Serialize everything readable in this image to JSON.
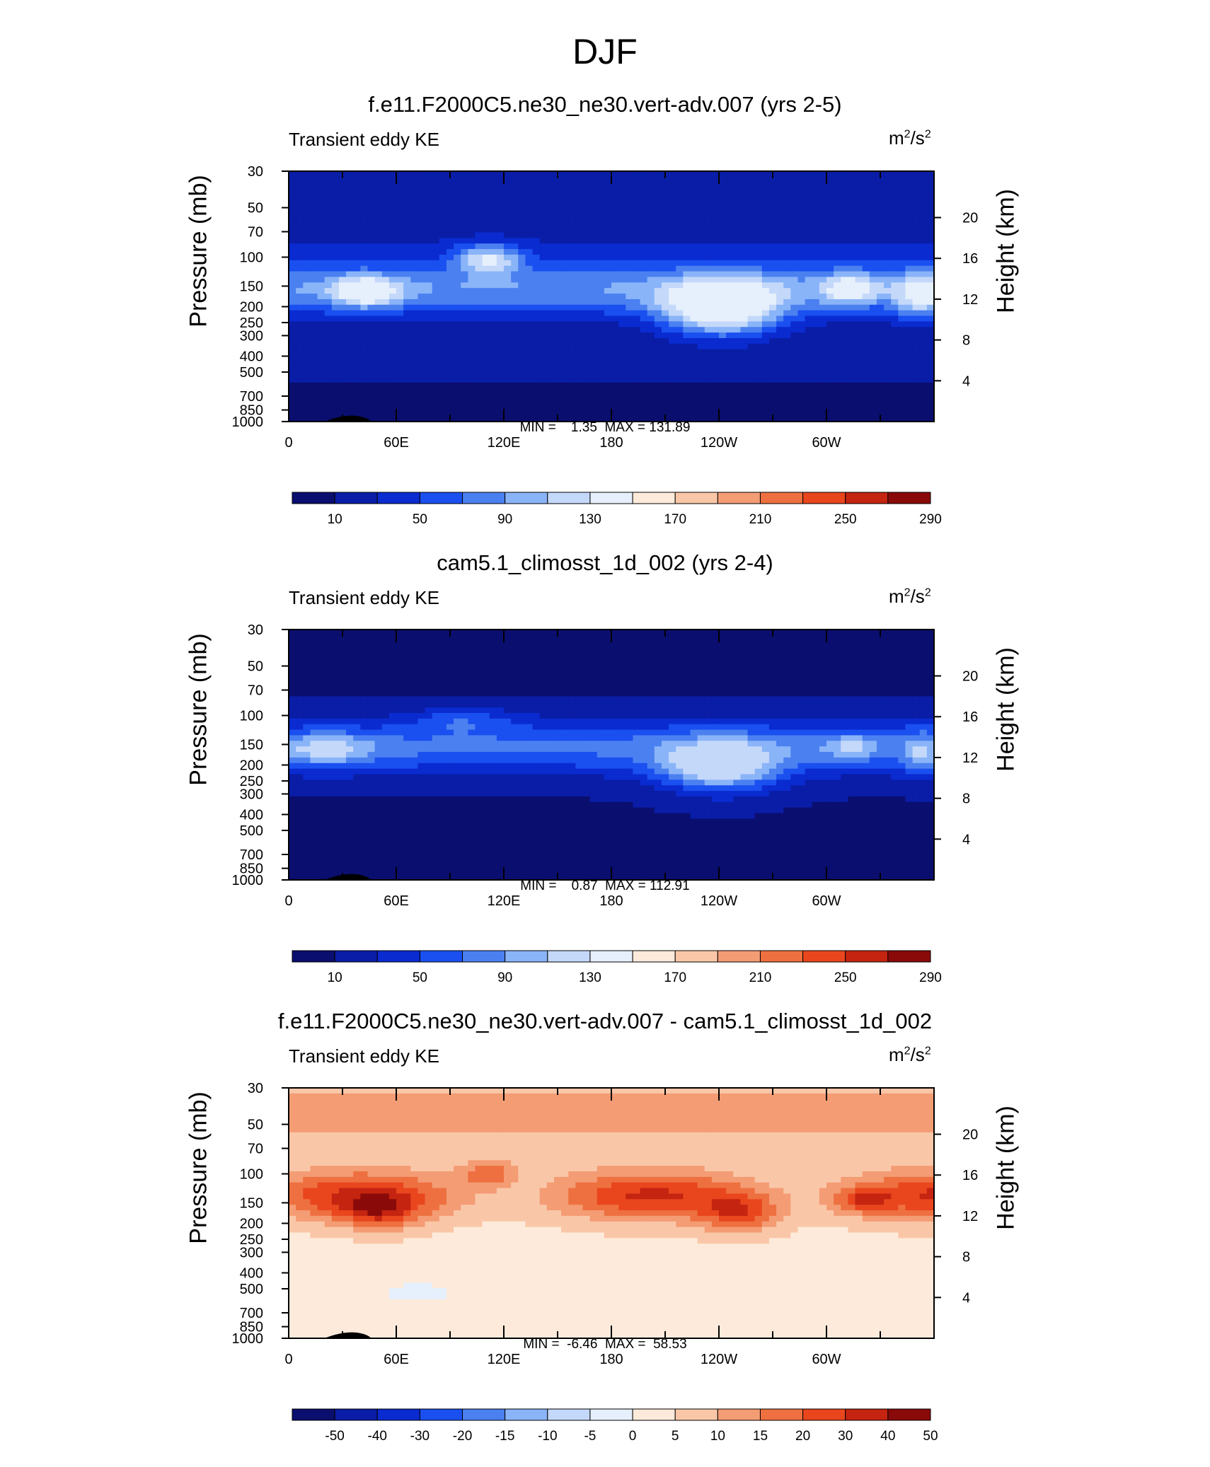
{
  "figure": {
    "title": "DJF"
  },
  "colors": {
    "scale": [
      "#0a0e6e",
      "#0a1da6",
      "#0a2bd0",
      "#1a4ff0",
      "#4a80f0",
      "#8ab4f8",
      "#c4d8fa",
      "#e6f0fc",
      "#fdeada",
      "#f9c7a8",
      "#f49c74",
      "#ee7040",
      "#e9461e",
      "#c42410",
      "#8a0a0a"
    ]
  },
  "panels": [
    {
      "title": "f.e11.F2000C5.ne30_ne30.vert-adv.007 (yrs 2-5)",
      "var_label": "Transient eddy KE",
      "units_base": "m",
      "units_sup1": "2",
      "units_mid": "/s",
      "units_sup2": "2",
      "min_label": "MIN =",
      "min_value": "1.35",
      "max_label": "MAX =",
      "max_value": "131.89",
      "minmax_text": "MIN =    1.35  MAX = 131.89",
      "colorbar_labels": [
        "10",
        "50",
        "90",
        "130",
        "170",
        "210",
        "250",
        "290"
      ]
    },
    {
      "title": "cam5.1_climosst_1d_002 (yrs 2-4)",
      "var_label": "Transient eddy KE",
      "units_base": "m",
      "units_sup1": "2",
      "units_mid": "/s",
      "units_sup2": "2",
      "min_label": "MIN =",
      "min_value": "0.87",
      "max_label": "MAX =",
      "max_value": "112.91",
      "minmax_text": "MIN =    0.87  MAX = 112.91",
      "colorbar_labels": [
        "10",
        "50",
        "90",
        "130",
        "170",
        "210",
        "250",
        "290"
      ]
    },
    {
      "title": "f.e11.F2000C5.ne30_ne30.vert-adv.007 - cam5.1_climosst_1d_002",
      "var_label": "Transient eddy KE",
      "units_base": "m",
      "units_sup1": "2",
      "units_mid": "/s",
      "units_sup2": "2",
      "min_label": "MIN =",
      "min_value": "-6.46",
      "max_label": "MAX =",
      "max_value": "58.53",
      "minmax_text": "MIN =  -6.46  MAX =  58.53",
      "colorbar_labels": [
        "-50",
        "-40",
        "-30",
        "-20",
        "-15",
        "-10",
        "-5",
        "0",
        "5",
        "10",
        "15",
        "20",
        "30",
        "40",
        "50"
      ]
    }
  ],
  "axes": {
    "ylabel_left": "Pressure (mb)",
    "ylabel_right": "Height (km)",
    "pressure_ticks": [
      "30",
      "50",
      "70",
      "100",
      "150",
      "200",
      "250",
      "300",
      "400",
      "500",
      "700",
      "850",
      "1000"
    ],
    "height_ticks": [
      "20",
      "16",
      "12",
      "8",
      "4"
    ],
    "lon_ticks": [
      "0",
      "60E",
      "120E",
      "180",
      "120W",
      "60W"
    ]
  },
  "chart_data": [
    {
      "type": "heatmap",
      "title": "f.e11.F2000C5.ne30_ne30.vert-adv.007 (yrs 2-5)",
      "subtitle": "Transient eddy KE",
      "units": "m2/s2",
      "xlabel": "",
      "ylabel": "Pressure (mb)",
      "ylabel_right": "Height (km)",
      "x_ticks": [
        "0",
        "60E",
        "120E",
        "180",
        "120W",
        "60W"
      ],
      "y_ticks": [
        30,
        50,
        70,
        100,
        150,
        200,
        250,
        300,
        400,
        500,
        700,
        850,
        1000
      ],
      "y_scale": "log",
      "y_reversed": true,
      "min": 1.35,
      "max": 131.89,
      "contour_levels": [
        10,
        30,
        50,
        70,
        90,
        110,
        130,
        150,
        170,
        190,
        210,
        230,
        250,
        270,
        290
      ]
    },
    {
      "type": "heatmap",
      "title": "cam5.1_climosst_1d_002 (yrs 2-4)",
      "subtitle": "Transient eddy KE",
      "units": "m2/s2",
      "xlabel": "",
      "ylabel": "Pressure (mb)",
      "ylabel_right": "Height (km)",
      "x_ticks": [
        "0",
        "60E",
        "120E",
        "180",
        "120W",
        "60W"
      ],
      "y_ticks": [
        30,
        50,
        70,
        100,
        150,
        200,
        250,
        300,
        400,
        500,
        700,
        850,
        1000
      ],
      "y_scale": "log",
      "y_reversed": true,
      "min": 0.87,
      "max": 112.91,
      "contour_levels": [
        10,
        30,
        50,
        70,
        90,
        110,
        130,
        150,
        170,
        190,
        210,
        230,
        250,
        270,
        290
      ]
    },
    {
      "type": "heatmap",
      "title": "f.e11.F2000C5.ne30_ne30.vert-adv.007 - cam5.1_climosst_1d_002",
      "subtitle": "Transient eddy KE",
      "units": "m2/s2",
      "xlabel": "",
      "ylabel": "Pressure (mb)",
      "ylabel_right": "Height (km)",
      "x_ticks": [
        "0",
        "60E",
        "120E",
        "180",
        "120W",
        "60W"
      ],
      "y_ticks": [
        30,
        50,
        70,
        100,
        150,
        200,
        250,
        300,
        400,
        500,
        700,
        850,
        1000
      ],
      "y_scale": "log",
      "y_reversed": true,
      "min": -6.46,
      "max": 58.53,
      "contour_levels": [
        -50,
        -40,
        -30,
        -20,
        -15,
        -10,
        -5,
        0,
        5,
        10,
        15,
        20,
        30,
        40,
        50
      ]
    }
  ]
}
